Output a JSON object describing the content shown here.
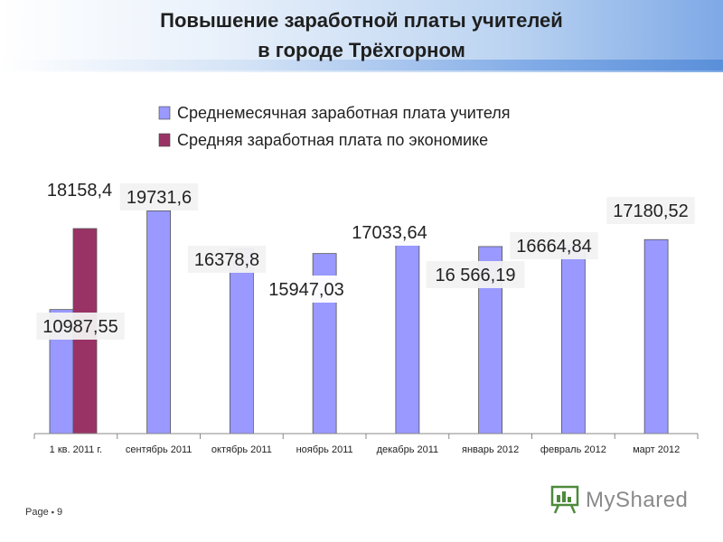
{
  "title": {
    "line1": "Повышение заработной платы учителей",
    "line2": "в городе Трёхгорном"
  },
  "footer": {
    "page_label": "Page",
    "page_number": "9",
    "logo_text": "MyShared"
  },
  "colors": {
    "teacher": "#9999ff",
    "economy": "#993366",
    "axis": "#888888"
  },
  "chart_data": {
    "type": "bar",
    "categories": [
      "1 кв. 2011 г.",
      "сентябрь 2011",
      "октябрь 2011",
      "ноябрь 2011",
      "декабрь 2011",
      "январь 2012",
      "февраль 2012",
      "март 2012"
    ],
    "series": [
      {
        "name": "Среднемесячная заработная плата учителя",
        "values": [
          10987.55,
          19731.6,
          16378.8,
          15947.03,
          17033.64,
          16566.19,
          16664.84,
          17180.52
        ],
        "labels": [
          "10987,55",
          "19731,6",
          "16378,8",
          "15947,03",
          "17033,64",
          "16 566,19",
          "16664,84",
          "17180,52"
        ]
      },
      {
        "name": "Средняя заработная плата по экономике",
        "values": [
          18158.4,
          null,
          null,
          null,
          null,
          null,
          null,
          null
        ],
        "labels": [
          "18158,4",
          "",
          "",
          "",
          "",
          "",
          "",
          ""
        ]
      }
    ],
    "ylim": [
      0,
      20000
    ],
    "legend_position": "top",
    "grid": false
  }
}
